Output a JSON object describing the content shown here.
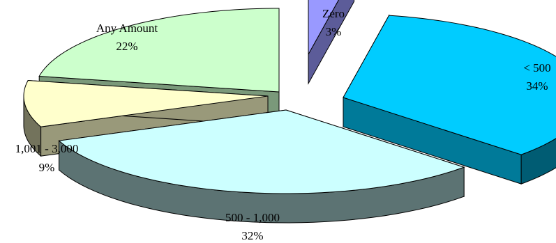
{
  "chart_data": {
    "type": "pie",
    "variant": "3d-exploded",
    "title": "",
    "slices": [
      {
        "label": "Zero",
        "value": 3,
        "value_label": "3%",
        "color": "#9999ff"
      },
      {
        "label": "< 500",
        "value": 34,
        "value_label": "34%",
        "color": "#00ccff"
      },
      {
        "label": "500 - 1,000",
        "value": 32,
        "value_label": "32%",
        "color": "#ccffff"
      },
      {
        "label": "1,001 - 3,000",
        "value": 9,
        "value_label": "9%",
        "color": "#ffffcc"
      },
      {
        "label": "Any Amount",
        "value": 22,
        "value_label": "22%",
        "color": "#ccffcc"
      }
    ],
    "legend": "none"
  }
}
